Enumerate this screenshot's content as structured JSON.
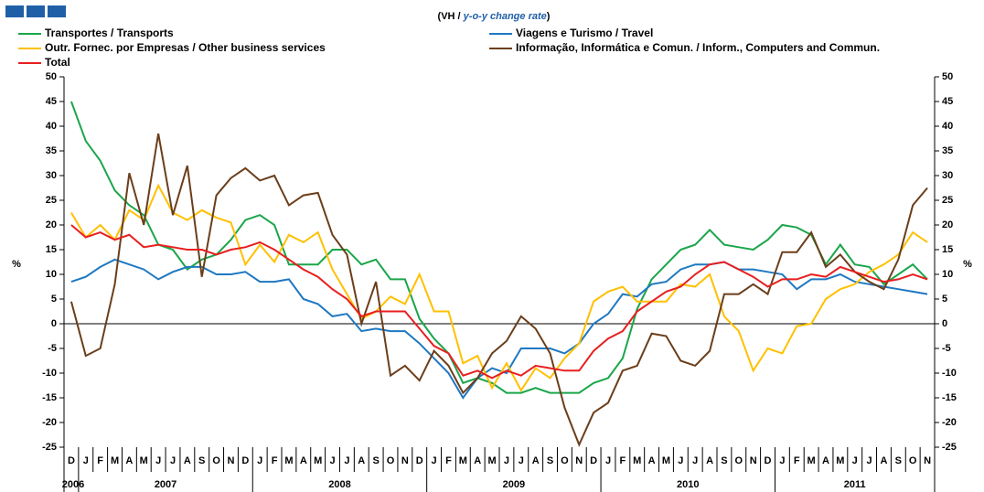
{
  "chart_data": {
    "type": "line",
    "subtitle": [
      "(VH / ",
      "y-o-y change rate",
      ")"
    ],
    "y_label": "%",
    "categories": [
      "D",
      "J",
      "F",
      "M",
      "A",
      "M",
      "J",
      "J",
      "A",
      "S",
      "O",
      "N",
      "D",
      "J",
      "F",
      "M",
      "A",
      "M",
      "J",
      "J",
      "A",
      "S",
      "O",
      "N",
      "D",
      "J",
      "F",
      "M",
      "A",
      "M",
      "J",
      "J",
      "A",
      "S",
      "O",
      "N",
      "D",
      "J",
      "F",
      "M",
      "A",
      "M",
      "J",
      "J",
      "A",
      "S",
      "O",
      "N",
      "D",
      "J",
      "F",
      "M",
      "A",
      "M",
      "J",
      "J",
      "A",
      "S",
      "O",
      "N"
    ],
    "x_groups": [
      {
        "label": "2006",
        "from": 0,
        "to": 0
      },
      {
        "label": "2007",
        "from": 1,
        "to": 12
      },
      {
        "label": "2008",
        "from": 13,
        "to": 24
      },
      {
        "label": "2009",
        "from": 25,
        "to": 36
      },
      {
        "label": "2010",
        "from": 37,
        "to": 48
      },
      {
        "label": "2011",
        "from": 49,
        "to": 59
      }
    ],
    "ylim": [
      -25,
      50
    ],
    "yticks": [
      -25,
      -20,
      -15,
      -10,
      -5,
      0,
      5,
      10,
      15,
      20,
      25,
      30,
      35,
      40,
      45,
      50
    ],
    "series": [
      {
        "name": "Transportes / Transports",
        "color": "#1aa64a",
        "values": [
          45,
          37,
          33,
          27,
          24,
          22,
          16,
          15,
          11,
          13,
          14,
          17,
          21,
          22,
          20,
          12,
          12,
          12,
          15,
          15,
          12,
          13,
          9,
          9,
          1,
          -3,
          -6,
          -12,
          -11,
          -12,
          -14,
          -14,
          -13,
          -14,
          -14,
          -14,
          -12,
          -11,
          -7,
          3,
          9,
          12,
          15,
          16,
          19,
          16,
          15.5,
          15,
          17,
          20,
          19.5,
          18,
          12,
          16,
          12,
          11.5,
          8,
          10,
          12,
          9
        ]
      },
      {
        "name": "Viagens e Turismo / Travel",
        "color": "#1f78c1",
        "values": [
          8.5,
          9.5,
          11.5,
          13,
          12,
          11,
          9,
          10.5,
          11.5,
          11.5,
          10,
          10,
          10.5,
          8.5,
          8.5,
          9,
          5,
          4,
          1.5,
          2,
          -1.5,
          -1,
          -1.5,
          -1.5,
          -4,
          -7,
          -10,
          -15,
          -11,
          -9,
          -10,
          -5,
          -5,
          -5,
          -6,
          -4,
          0,
          2,
          6,
          5.5,
          8,
          8.5,
          11,
          12,
          12,
          12.5,
          11,
          11,
          10.5,
          10,
          7,
          9,
          9,
          10,
          8.5,
          8,
          7.5,
          7,
          6.5,
          6
        ]
      },
      {
        "name": "Outr. Fornec. por Empresas / Other business services",
        "color": "#ffc000",
        "values": [
          22.5,
          17.5,
          20,
          17,
          23,
          21,
          28,
          22.5,
          21,
          23,
          21.5,
          20.5,
          12,
          16,
          12.5,
          18,
          16.5,
          18.5,
          11,
          6,
          1,
          2.5,
          5.5,
          4,
          10,
          2.5,
          2.5,
          -8,
          -6.5,
          -13,
          -8,
          -13.5,
          -9,
          -11,
          -7,
          -4,
          4.5,
          6.5,
          7.5,
          4.5,
          4.5,
          4.5,
          8,
          7.5,
          10,
          1.5,
          -1.5,
          -9.5,
          -5,
          -6,
          -0.5,
          0,
          5,
          7,
          8,
          10.5,
          12,
          14,
          18.5,
          16.5
        ]
      },
      {
        "name": "Informação, Informática e Comun. / Inform., Computers and Commun.",
        "color": "#6b3e1a",
        "values": [
          4.5,
          -6.5,
          -5,
          8,
          30.5,
          20,
          38.5,
          22,
          32,
          9.5,
          26,
          29.5,
          31.5,
          29,
          30,
          24,
          26,
          26.5,
          18,
          14,
          0,
          8.5,
          -10.5,
          -8.5,
          -11.5,
          -5.5,
          -8.5,
          -14,
          -11,
          -6,
          -3.5,
          1.5,
          -1,
          -6,
          -17,
          -24.5,
          -18,
          -16,
          -9.5,
          -8.5,
          -2,
          -2.5,
          -7.5,
          -8.5,
          -5.5,
          6,
          6,
          8,
          6,
          14.5,
          14.5,
          18.5,
          11.5,
          14,
          10.5,
          8.5,
          7,
          13,
          24,
          27.5
        ]
      },
      {
        "name": "Total",
        "color": "#e81f1f",
        "values": [
          20,
          17.5,
          18.5,
          17,
          18,
          15.5,
          16,
          15.5,
          15,
          15,
          14,
          15,
          15.5,
          16.5,
          15,
          13,
          11,
          9.5,
          7,
          5,
          1.5,
          2.5,
          2.5,
          2.5,
          -1,
          -4.5,
          -6,
          -10.5,
          -9.5,
          -11,
          -9.5,
          -10.5,
          -8.5,
          -9,
          -9.5,
          -9.5,
          -5.5,
          -3,
          -1.5,
          2.5,
          4.5,
          6.5,
          7.5,
          10,
          12,
          12.5,
          11,
          9.5,
          7.5,
          9,
          9,
          10,
          9.5,
          11.5,
          10.5,
          9.5,
          8.5,
          9,
          10,
          9
        ]
      }
    ]
  }
}
